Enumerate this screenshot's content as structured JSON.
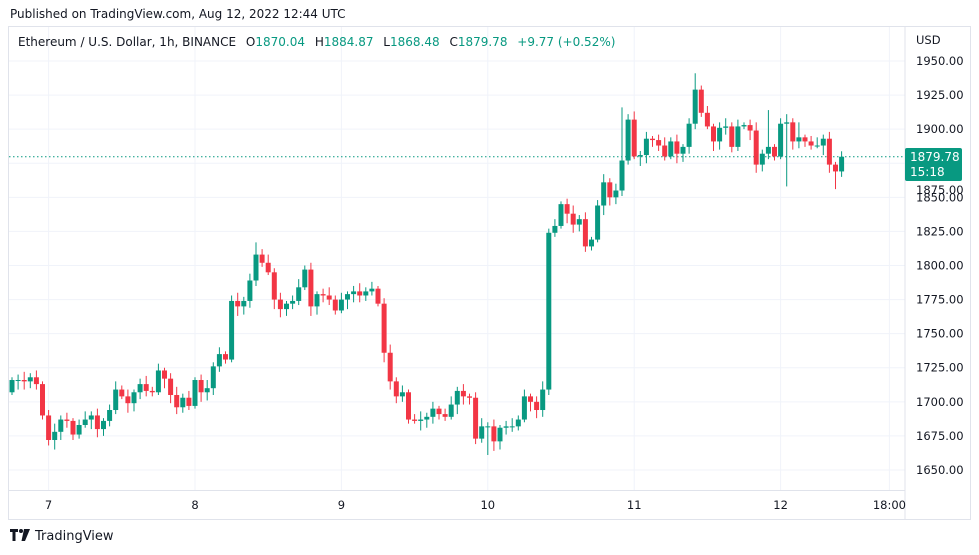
{
  "header": {
    "published": "Published on TradingView.com, Aug 12, 2022 12:44 UTC"
  },
  "legend": {
    "symbol": "Ethereum / U.S. Dollar, 1h, BINANCE",
    "o_label": "O",
    "o": "1870.04",
    "h_label": "H",
    "h": "1884.87",
    "l_label": "L",
    "l": "1868.48",
    "c_label": "C",
    "c": "1879.78",
    "change": "+9.77 (+0.52%)"
  },
  "price_tag": {
    "price": "1879.78",
    "countdown": "15:18"
  },
  "footer": {
    "brand": "TradingView"
  },
  "colors": {
    "up": "#089981",
    "down": "#f23645",
    "grid": "#f0f3fa"
  },
  "chart_data": {
    "type": "candlestick",
    "title": "Ethereum / U.S. Dollar, 1h, BINANCE",
    "currency": "USD",
    "ylim": [
      1630,
      1960
    ],
    "yticks": [
      1650,
      1675,
      1700,
      1725,
      1750,
      1775,
      1800,
      1825,
      1850,
      1875,
      1900,
      1925,
      1950
    ],
    "ytick_labels": [
      "1650.00",
      "1675.00",
      "1700.00",
      "1725.00",
      "1750.00",
      "1775.00",
      "1800.00",
      "1825.00",
      "1850.00",
      "1875.00",
      "1900.00",
      "1925.00",
      "1950.00"
    ],
    "xtick_labels": [
      "7",
      "8",
      "9",
      "10",
      "11",
      "12",
      "18:00"
    ],
    "xtick_candle_index": [
      6,
      30,
      54,
      78,
      102,
      126,
      144
    ],
    "first_open": 1707,
    "close": [
      1716,
      1716,
      1715,
      1718,
      1713,
      1690,
      1672,
      1678,
      1687,
      1686,
      1676,
      1683,
      1687,
      1690,
      1680,
      1686,
      1694,
      1709,
      1704,
      1699,
      1707,
      1713,
      1708,
      1707,
      1723,
      1717,
      1705,
      1696,
      1703,
      1697,
      1716,
      1707,
      1710,
      1726,
      1735,
      1731,
      1774,
      1770,
      1774,
      1789,
      1808,
      1802,
      1795,
      1775,
      1768,
      1772,
      1774,
      1784,
      1797,
      1770,
      1779,
      1778,
      1775,
      1767,
      1775,
      1779,
      1781,
      1778,
      1781,
      1783,
      1772,
      1736,
      1715,
      1704,
      1707,
      1687,
      1686,
      1687,
      1689,
      1695,
      1691,
      1689,
      1698,
      1708,
      1704,
      1703,
      1673,
      1682,
      1682,
      1671,
      1681,
      1682,
      1682,
      1687,
      1704,
      1700,
      1694,
      1709,
      1824,
      1829,
      1845,
      1838,
      1830,
      1834,
      1814,
      1819,
      1844,
      1861,
      1850,
      1855,
      1877,
      1907,
      1880,
      1881,
      1893,
      1892,
      1888,
      1880,
      1891,
      1882,
      1887,
      1904,
      1929,
      1912,
      1902,
      1891,
      1901,
      1902,
      1887,
      1902,
      1903,
      1899,
      1874,
      1882,
      1887,
      1880,
      1904,
      1905,
      1891,
      1894,
      1891,
      1888,
      1888,
      1893,
      1874,
      1869,
      1879.78
    ],
    "notable_highs": {
      "40": 1817,
      "88": 1827,
      "100": 1916,
      "112": 1941,
      "124": 1914,
      "129": 1905
    },
    "notable_lows": {
      "6": 1668,
      "78": 1661,
      "127": 1858,
      "135": 1856
    },
    "last_price": 1879.78
  }
}
